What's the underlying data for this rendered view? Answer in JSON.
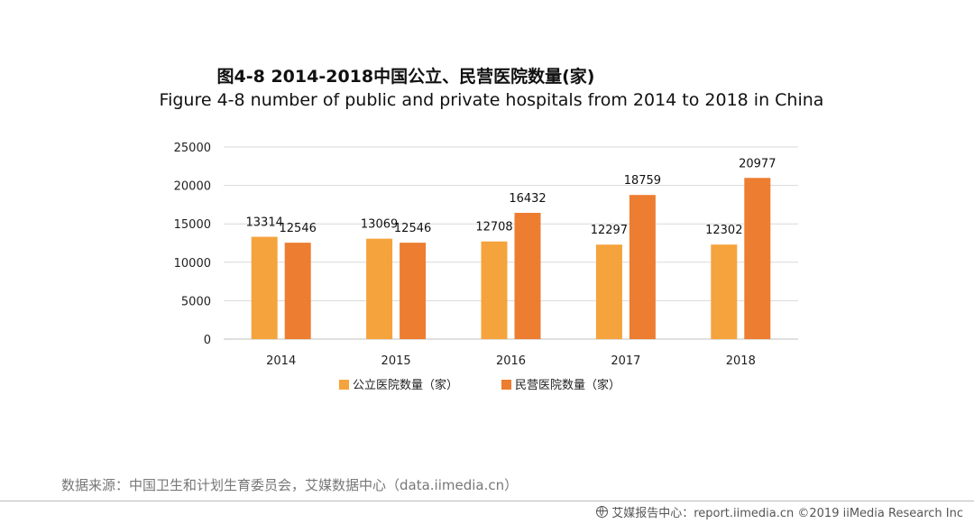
{
  "header": {
    "title_cn": "图4-8  2014-2018中国公立、民营医院数量(家)",
    "title_en": "Figure 4-8 number of public and private hospitals from 2014 to 2018 in China"
  },
  "chart_data": {
    "type": "bar",
    "categories": [
      "2014",
      "2015",
      "2016",
      "2017",
      "2018"
    ],
    "series": [
      {
        "name": "公立医院数量（家）",
        "color": "#f5a33c",
        "values": [
          13314,
          13069,
          12708,
          12297,
          12302
        ]
      },
      {
        "name": "民营医院数量（家）",
        "color": "#ed7d31",
        "values": [
          12546,
          12546,
          16432,
          18759,
          20977
        ]
      }
    ],
    "ylim": [
      0,
      25000
    ],
    "yticks": [
      "0",
      "5000",
      "10000",
      "15000",
      "20000",
      "25000"
    ],
    "grid": true,
    "legend_position": "bottom"
  },
  "footer": {
    "source": "数据来源：中国卫生和计划生育委员会，艾媒数据中心（data.iimedia.cn）",
    "brand": "艾媒报告中心：report.iimedia.cn  ©2019  iiMedia Research  Inc",
    "icon": "globe-icon"
  }
}
